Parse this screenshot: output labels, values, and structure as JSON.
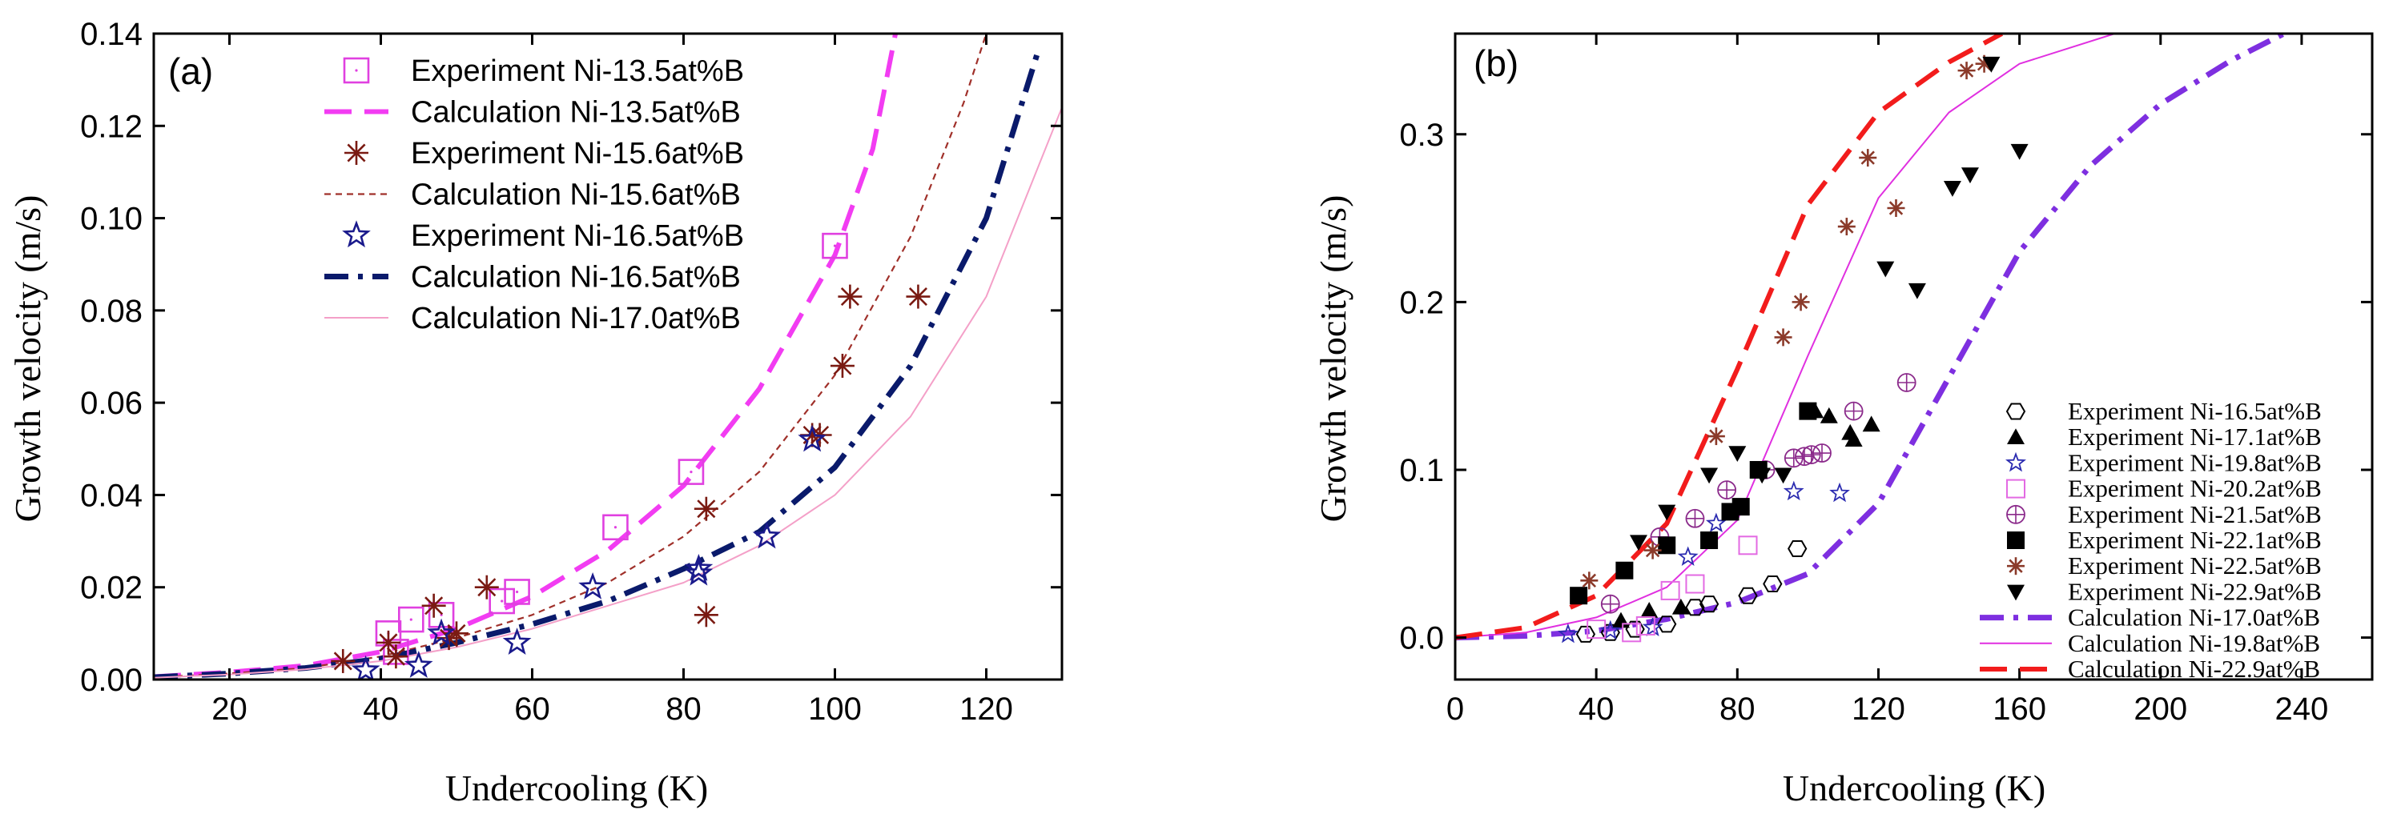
{
  "chart_data": [
    {
      "panel_label": "(a)",
      "type": "scatter",
      "xlabel": "Undercooling (K)",
      "ylabel": "Growth velocity (m/s)",
      "xlim": [
        10,
        130
      ],
      "ylim": [
        0,
        0.14
      ],
      "x_ticks": [
        "20",
        "40",
        "60",
        "80",
        "100",
        "120"
      ],
      "y_ticks": [
        "0.00",
        "0.02",
        "0.04",
        "0.06",
        "0.08",
        "0.10",
        "0.12",
        "0.14"
      ],
      "legend_position": "top-left",
      "series": [
        {
          "name": "Experiment Ni-13.5at%B",
          "kind": "scatter",
          "marker": "square-dot",
          "color": "#e040e0",
          "points": [
            [
              41,
              0.01
            ],
            [
              42,
              0.006
            ],
            [
              44,
              0.013
            ],
            [
              48,
              0.014
            ],
            [
              56,
              0.017
            ],
            [
              58,
              0.019
            ],
            [
              71,
              0.033
            ],
            [
              81,
              0.045
            ],
            [
              100,
              0.094
            ]
          ]
        },
        {
          "name": "Calculation Ni-13.5at%B",
          "kind": "line",
          "style": "dash",
          "color": "#f23cf2",
          "points": [
            [
              10,
              0.0006
            ],
            [
              20,
              0.0016
            ],
            [
              30,
              0.003
            ],
            [
              40,
              0.006
            ],
            [
              50,
              0.011
            ],
            [
              60,
              0.018
            ],
            [
              70,
              0.028
            ],
            [
              80,
              0.042
            ],
            [
              90,
              0.063
            ],
            [
              100,
              0.092
            ],
            [
              105,
              0.115
            ],
            [
              108,
              0.14
            ]
          ]
        },
        {
          "name": "Experiment Ni-15.6at%B",
          "kind": "scatter",
          "marker": "asterisk",
          "color": "#7a1a12",
          "points": [
            [
              35,
              0.004
            ],
            [
              41,
              0.008
            ],
            [
              42,
              0.005
            ],
            [
              47,
              0.016
            ],
            [
              49,
              0.009
            ],
            [
              50,
              0.01
            ],
            [
              54,
              0.02
            ],
            [
              83,
              0.037
            ],
            [
              83,
              0.014
            ],
            [
              97,
              0.053
            ],
            [
              98,
              0.053
            ],
            [
              101,
              0.068
            ],
            [
              102,
              0.083
            ],
            [
              111,
              0.083
            ]
          ]
        },
        {
          "name": "Calculation Ni-15.6at%B",
          "kind": "line",
          "style": "short-dash",
          "color": "#a0302a",
          "points": [
            [
              10,
              0.0005
            ],
            [
              20,
              0.0013
            ],
            [
              30,
              0.0025
            ],
            [
              40,
              0.005
            ],
            [
              50,
              0.009
            ],
            [
              60,
              0.014
            ],
            [
              70,
              0.021
            ],
            [
              80,
              0.031
            ],
            [
              90,
              0.045
            ],
            [
              100,
              0.066
            ],
            [
              110,
              0.096
            ],
            [
              117,
              0.125
            ],
            [
              120,
              0.14
            ]
          ]
        },
        {
          "name": "Experiment Ni-16.5at%B",
          "kind": "scatter",
          "marker": "star",
          "color": "#1a1a8c",
          "points": [
            [
              38,
              0.002
            ],
            [
              45,
              0.003
            ],
            [
              48,
              0.01
            ],
            [
              58,
              0.008
            ],
            [
              68,
              0.02
            ],
            [
              82,
              0.023
            ],
            [
              82,
              0.024
            ],
            [
              91,
              0.031
            ],
            [
              97,
              0.052
            ]
          ]
        },
        {
          "name": "Calculation Ni-16.5at%B",
          "kind": "line",
          "style": "dash-dot",
          "color": "#0a1a6b",
          "points": [
            [
              10,
              0.0005
            ],
            [
              20,
              0.0013
            ],
            [
              30,
              0.0025
            ],
            [
              40,
              0.0045
            ],
            [
              50,
              0.008
            ],
            [
              60,
              0.012
            ],
            [
              70,
              0.017
            ],
            [
              80,
              0.024
            ],
            [
              90,
              0.032
            ],
            [
              100,
              0.046
            ],
            [
              110,
              0.068
            ],
            [
              120,
              0.1
            ],
            [
              127,
              0.137
            ]
          ]
        },
        {
          "name": "Calculation Ni-17.0at%B",
          "kind": "line",
          "style": "solid-thin",
          "color": "#f4a0c8",
          "points": [
            [
              10,
              0.0004
            ],
            [
              20,
              0.0011
            ],
            [
              30,
              0.0022
            ],
            [
              40,
              0.004
            ],
            [
              50,
              0.007
            ],
            [
              60,
              0.011
            ],
            [
              70,
              0.016
            ],
            [
              80,
              0.021
            ],
            [
              90,
              0.029
            ],
            [
              100,
              0.04
            ],
            [
              110,
              0.057
            ],
            [
              120,
              0.083
            ],
            [
              130,
              0.124
            ]
          ]
        }
      ]
    },
    {
      "panel_label": "(b)",
      "type": "scatter",
      "xlabel": "Undercooling (K)",
      "ylabel": "Growth velocity (m/s)",
      "xlim": [
        0,
        260
      ],
      "ylim": [
        -0.025,
        0.36
      ],
      "x_ticks": [
        "0",
        "40",
        "80",
        "120",
        "160",
        "200",
        "240"
      ],
      "y_ticks": [
        "0.0",
        "0.1",
        "0.2",
        "0.3"
      ],
      "legend_position": "bottom-right",
      "series": [
        {
          "name": "Experiment Ni-16.5at%B",
          "kind": "scatter",
          "marker": "hexagon-open",
          "color": "#000000",
          "points": [
            [
              37,
              0.002
            ],
            [
              44,
              0.003
            ],
            [
              51,
              0.005
            ],
            [
              60,
              0.008
            ],
            [
              68,
              0.018
            ],
            [
              72,
              0.02
            ],
            [
              83,
              0.025
            ],
            [
              90,
              0.032
            ],
            [
              97,
              0.053
            ]
          ]
        },
        {
          "name": "Experiment Ni-17.1at%B",
          "kind": "scatter",
          "marker": "triangle-up-filled",
          "color": "#000000",
          "points": [
            [
              47,
              0.01
            ],
            [
              55,
              0.016
            ],
            [
              64,
              0.018
            ],
            [
              102,
              0.135
            ],
            [
              106,
              0.132
            ],
            [
              112,
              0.122
            ],
            [
              113,
              0.118
            ],
            [
              118,
              0.127
            ]
          ]
        },
        {
          "name": "Experiment Ni-19.8at%B",
          "kind": "scatter",
          "marker": "star-open",
          "color": "#2b2bb0",
          "points": [
            [
              32,
              0.002
            ],
            [
              44,
              0.004
            ],
            [
              56,
              0.006
            ],
            [
              66,
              0.048
            ],
            [
              74,
              0.068
            ],
            [
              96,
              0.087
            ],
            [
              109,
              0.086
            ]
          ]
        },
        {
          "name": "Experiment Ni-20.2at%B",
          "kind": "scatter",
          "marker": "square-open",
          "color": "#e36ae3",
          "points": [
            [
              40,
              0.005
            ],
            [
              50,
              0.003
            ],
            [
              54,
              0.007
            ],
            [
              61,
              0.028
            ],
            [
              68,
              0.032
            ],
            [
              83,
              0.055
            ]
          ]
        },
        {
          "name": "Experiment Ni-21.5at%B",
          "kind": "scatter",
          "marker": "circle-plus",
          "color": "#8b2a8b",
          "points": [
            [
              44,
              0.02
            ],
            [
              58,
              0.06
            ],
            [
              68,
              0.071
            ],
            [
              77,
              0.088
            ],
            [
              88,
              0.1
            ],
            [
              96,
              0.107
            ],
            [
              99,
              0.108
            ],
            [
              101,
              0.109
            ],
            [
              104,
              0.11
            ],
            [
              113,
              0.135
            ],
            [
              128,
              0.152
            ]
          ]
        },
        {
          "name": "Experiment Ni-22.1at%B",
          "kind": "scatter",
          "marker": "square-filled",
          "color": "#000000",
          "points": [
            [
              35,
              0.025
            ],
            [
              48,
              0.04
            ],
            [
              60,
              0.055
            ],
            [
              72,
              0.058
            ],
            [
              78,
              0.075
            ],
            [
              81,
              0.078
            ],
            [
              86,
              0.1
            ],
            [
              100,
              0.135
            ]
          ]
        },
        {
          "name": "Experiment Ni-22.5at%B",
          "kind": "scatter",
          "marker": "asterisk",
          "color": "#8b3a2a",
          "points": [
            [
              38,
              0.034
            ],
            [
              56,
              0.052
            ],
            [
              74,
              0.12
            ],
            [
              93,
              0.179
            ],
            [
              98,
              0.2
            ],
            [
              111,
              0.245
            ],
            [
              117,
              0.286
            ],
            [
              125,
              0.256
            ],
            [
              145,
              0.338
            ],
            [
              150,
              0.342
            ]
          ]
        },
        {
          "name": "Experiment Ni-22.9at%B",
          "kind": "scatter",
          "marker": "triangle-down-filled",
          "color": "#000000",
          "points": [
            [
              52,
              0.057
            ],
            [
              60,
              0.075
            ],
            [
              72,
              0.097
            ],
            [
              80,
              0.11
            ],
            [
              87,
              0.097
            ],
            [
              93,
              0.097
            ],
            [
              122,
              0.22
            ],
            [
              131,
              0.207
            ],
            [
              141,
              0.268
            ],
            [
              146,
              0.276
            ],
            [
              160,
              0.29
            ],
            [
              152,
              0.342
            ]
          ]
        },
        {
          "name": "Calculation Ni-17.0at%B",
          "kind": "line",
          "style": "dash-dot",
          "color": "#7e2fe0",
          "points": [
            [
              0,
              0
            ],
            [
              20,
              0.001
            ],
            [
              40,
              0.004
            ],
            [
              60,
              0.011
            ],
            [
              80,
              0.021
            ],
            [
              100,
              0.038
            ],
            [
              120,
              0.08
            ],
            [
              140,
              0.155
            ],
            [
              160,
              0.23
            ],
            [
              180,
              0.281
            ],
            [
              200,
              0.318
            ],
            [
              220,
              0.344
            ],
            [
              235,
              0.36
            ]
          ]
        },
        {
          "name": "Calculation Ni-19.8at%B",
          "kind": "line",
          "style": "solid-thin",
          "color": "#e02fe0",
          "points": [
            [
              0,
              0
            ],
            [
              20,
              0.003
            ],
            [
              40,
              0.012
            ],
            [
              60,
              0.03
            ],
            [
              80,
              0.07
            ],
            [
              100,
              0.168
            ],
            [
              120,
              0.262
            ],
            [
              140,
              0.313
            ],
            [
              160,
              0.342
            ],
            [
              187,
              0.36
            ]
          ]
        },
        {
          "name": "Calculation Ni-22.9at%B",
          "kind": "line",
          "style": "dash",
          "color": "#f21c1c",
          "points": [
            [
              0,
              0
            ],
            [
              20,
              0.006
            ],
            [
              40,
              0.025
            ],
            [
              60,
              0.068
            ],
            [
              80,
              0.16
            ],
            [
              100,
              0.258
            ],
            [
              120,
              0.313
            ],
            [
              140,
              0.343
            ],
            [
              155,
              0.36
            ]
          ]
        }
      ]
    }
  ]
}
